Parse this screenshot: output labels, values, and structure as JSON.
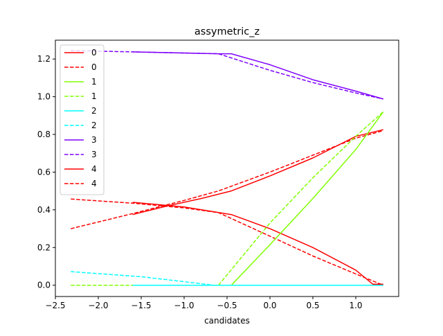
{
  "chart_data": {
    "type": "line",
    "title": "assymetric_z",
    "xlabel": "candidates",
    "ylabel": "",
    "xlim": [
      -2.5,
      1.5
    ],
    "ylim": [
      -0.06,
      1.3
    ],
    "xticks": [
      -2.5,
      -2.0,
      -1.5,
      -1.0,
      -0.5,
      0.0,
      0.5,
      1.0
    ],
    "xtick_labels": [
      "−2.5",
      "−2.0",
      "−1.5",
      "−1.0",
      "−0.5",
      "0.0",
      "0.5",
      "1.0"
    ],
    "yticks": [
      0.0,
      0.2,
      0.4,
      0.6,
      0.8,
      1.0,
      1.2
    ],
    "ytick_labels": [
      "0.0",
      "0.2",
      "0.4",
      "0.6",
      "0.8",
      "1.0",
      "1.2"
    ],
    "grid": false,
    "legend_position": "upper-left",
    "series": [
      {
        "name": "0",
        "color": "#ff0000",
        "style": "solid",
        "lines": [
          {
            "x": [
              -1.6,
              -1.2,
              -0.8,
              -0.45
            ],
            "y": [
              0.375,
              0.42,
              0.46,
              0.5
            ]
          },
          {
            "x": [
              -0.45,
              0.0,
              0.5,
              1.0,
              1.32
            ],
            "y": [
              0.5,
              0.58,
              0.675,
              0.79,
              0.825
            ]
          },
          {
            "x": [
              -1.6,
              -1.0,
              -0.45,
              0.0,
              0.5,
              1.0,
              1.2,
              1.32
            ],
            "y": [
              0.44,
              0.415,
              0.375,
              0.3,
              0.2,
              0.08,
              0.005,
              0.005
            ]
          }
        ]
      },
      {
        "name": "0",
        "color": "#ff0000",
        "style": "dashed",
        "lines": [
          {
            "x": [
              -2.32,
              -1.6,
              -1.0,
              -0.6,
              0.0,
              0.5,
              1.0,
              1.32
            ],
            "y": [
              0.3,
              0.38,
              0.45,
              0.5,
              0.6,
              0.69,
              0.78,
              0.82
            ]
          },
          {
            "x": [
              -2.32,
              -1.6,
              -1.0,
              -0.6,
              0.0,
              0.5,
              1.0,
              1.32
            ],
            "y": [
              0.457,
              0.435,
              0.41,
              0.385,
              0.26,
              0.155,
              0.06,
              0.0
            ]
          }
        ]
      },
      {
        "name": "1",
        "color": "#80ff00",
        "style": "solid",
        "lines": [
          {
            "x": [
              -1.6,
              -0.45,
              0.0,
              0.5,
              1.0,
              1.32
            ],
            "y": [
              0.0,
              0.0,
              0.215,
              0.46,
              0.72,
              0.92
            ]
          }
        ]
      },
      {
        "name": "1",
        "color": "#80ff00",
        "style": "dashed",
        "lines": [
          {
            "x": [
              -2.32,
              -0.6,
              0.0,
              0.5,
              1.0,
              1.32
            ],
            "y": [
              0.0,
              0.0,
              0.33,
              0.57,
              0.79,
              0.92
            ]
          }
        ]
      },
      {
        "name": "2",
        "color": "#00ffff",
        "style": "solid",
        "lines": [
          {
            "x": [
              -1.6,
              0.0,
              1.32
            ],
            "y": [
              0.0,
              0.0,
              0.0
            ]
          }
        ]
      },
      {
        "name": "2",
        "color": "#00ffff",
        "style": "dashed",
        "lines": [
          {
            "x": [
              -2.32,
              -1.5,
              -0.65,
              0.0,
              1.32
            ],
            "y": [
              0.072,
              0.045,
              0.0,
              0.0,
              0.0
            ]
          }
        ]
      },
      {
        "name": "3",
        "color": "#7f00ff",
        "style": "solid",
        "lines": [
          {
            "x": [
              -1.6,
              -0.6,
              -0.45,
              0.0,
              0.5,
              1.0,
              1.32
            ],
            "y": [
              1.238,
              1.228,
              1.228,
              1.17,
              1.09,
              1.03,
              0.988
            ]
          }
        ]
      },
      {
        "name": "3",
        "color": "#7f00ff",
        "style": "dashed",
        "lines": [
          {
            "x": [
              -2.32,
              -1.6,
              -0.6,
              0.0,
              0.5,
              1.0,
              1.32
            ],
            "y": [
              1.245,
              1.238,
              1.228,
              1.14,
              1.075,
              1.02,
              0.988
            ]
          }
        ]
      },
      {
        "name": "4",
        "color": "#ff0000",
        "style": "solid",
        "lines": []
      },
      {
        "name": "4",
        "color": "#ff0000",
        "style": "dashed",
        "lines": []
      }
    ]
  }
}
